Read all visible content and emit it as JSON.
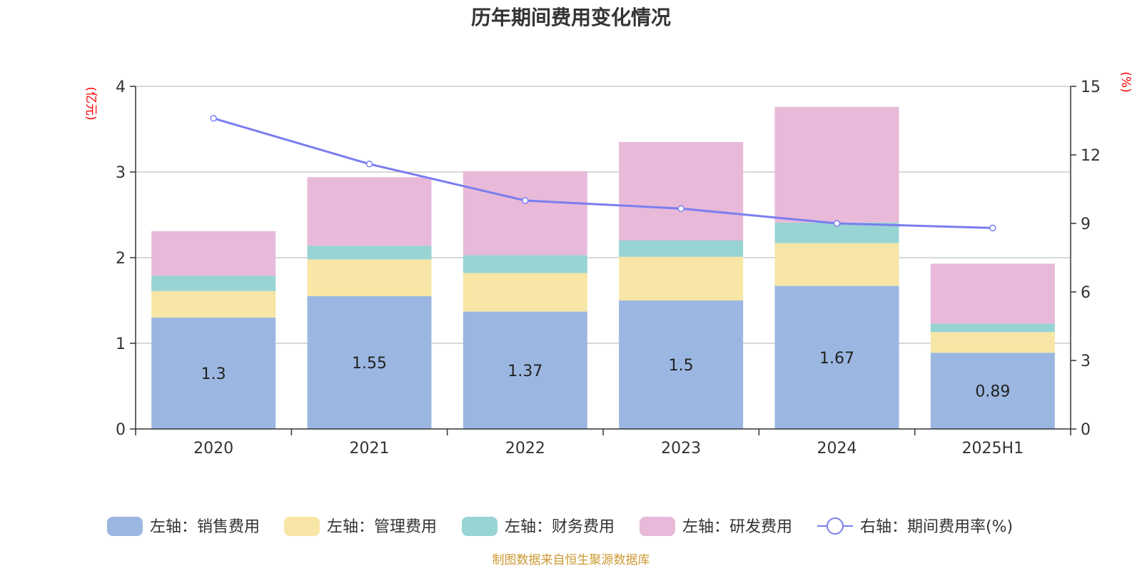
{
  "chart_data": {
    "type": "bar",
    "stacked": true,
    "title": "历年期间费用变化情况",
    "categories": [
      "2020",
      "2021",
      "2022",
      "2023",
      "2024",
      "2025H1"
    ],
    "left_axis": {
      "unit": "(亿元)",
      "ylim": [
        0,
        4
      ],
      "ticks": [
        "0",
        "1",
        "2",
        "3",
        "4"
      ]
    },
    "right_axis": {
      "unit": "(%)",
      "ylim": [
        0,
        15
      ],
      "ticks": [
        "0",
        "3",
        "6",
        "9",
        "12",
        "15"
      ]
    },
    "series": [
      {
        "name": "左轴：销售费用",
        "axis": "left",
        "color": "#9bb7e1",
        "values": [
          1.3,
          1.55,
          1.37,
          1.5,
          1.67,
          0.89
        ],
        "labels": [
          "1.3",
          "1.55",
          "1.37",
          "1.5",
          "1.67",
          "0.89"
        ]
      },
      {
        "name": "左轴：管理费用",
        "axis": "left",
        "color": "#f7e6a6",
        "values": [
          0.31,
          0.43,
          0.45,
          0.51,
          0.5,
          0.24
        ]
      },
      {
        "name": "左轴：财务费用",
        "axis": "left",
        "color": "#98d4d3",
        "values": [
          0.18,
          0.16,
          0.21,
          0.19,
          0.24,
          0.1
        ]
      },
      {
        "name": "左轴：研发费用",
        "axis": "left",
        "color": "#e8b9d9",
        "values": [
          0.52,
          0.8,
          0.98,
          1.15,
          1.35,
          0.7
        ]
      },
      {
        "name": "右轴：期间费用率(%)",
        "axis": "right",
        "type": "line",
        "color": "#7a7ef0",
        "values": [
          13.6,
          11.6,
          10.0,
          9.65,
          9.0,
          8.8
        ]
      }
    ],
    "grid": true,
    "legend": "bottom"
  },
  "source": "制图数据来自恒生聚源数据库"
}
